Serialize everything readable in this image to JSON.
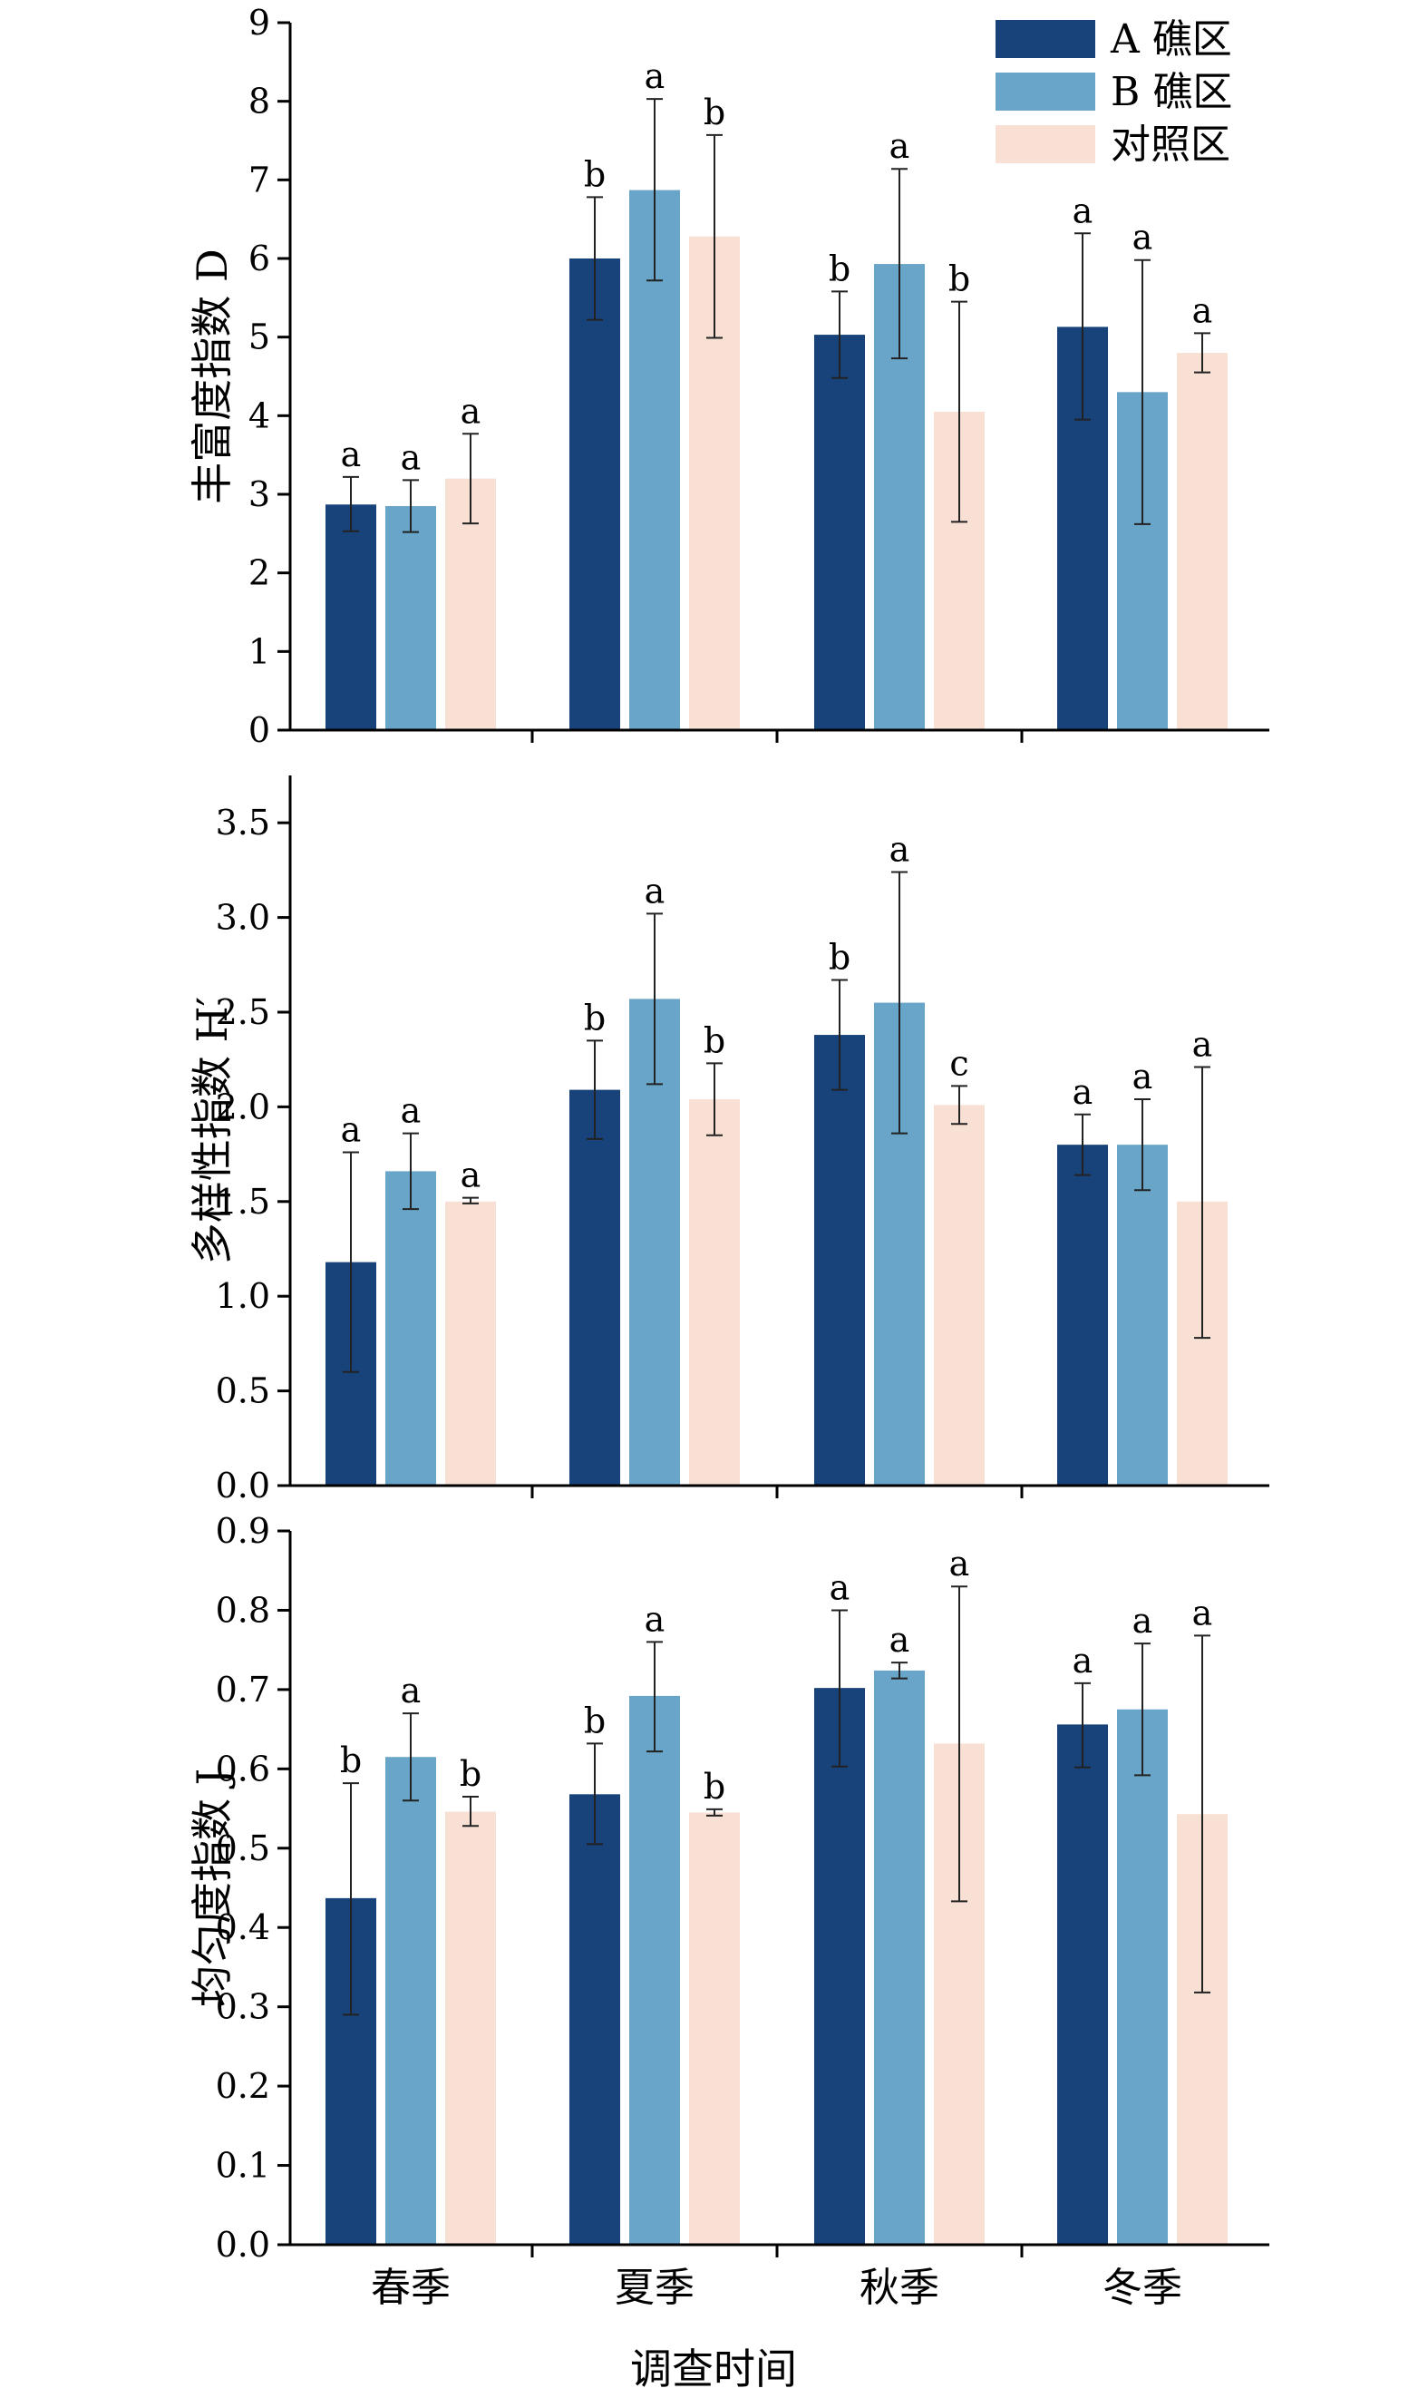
{
  "legend": {
    "items": [
      {
        "label": "A 礁区",
        "color": "#17437a"
      },
      {
        "label": "B 礁区",
        "color": "#68a5c8"
      },
      {
        "label": "对照区",
        "color": "#f8e0d5"
      }
    ]
  },
  "x_axis_title": "调查时间",
  "chart_data": [
    {
      "type": "bar",
      "ylabel": "丰富度指数 D",
      "categories": [
        "春季",
        "夏季",
        "秋季",
        "冬季"
      ],
      "ylim": [
        0,
        9
      ],
      "yticks": [
        0,
        1,
        2,
        3,
        4,
        5,
        6,
        7,
        8,
        9
      ],
      "ytick_labels": [
        "0",
        "1",
        "2",
        "3",
        "4",
        "5",
        "6",
        "7",
        "8",
        "9"
      ],
      "series": [
        {
          "name": "A 礁区",
          "values": [
            2.87,
            6.0,
            5.03,
            5.13
          ],
          "err_low": [
            2.53,
            5.22,
            4.48,
            3.95
          ],
          "err_high": [
            3.22,
            6.78,
            5.58,
            6.32
          ],
          "sig": [
            "a",
            "b",
            "b",
            "a"
          ]
        },
        {
          "name": "B 礁区",
          "values": [
            2.85,
            6.87,
            5.93,
            4.3
          ],
          "err_low": [
            2.52,
            5.72,
            4.73,
            2.62
          ],
          "err_high": [
            3.18,
            8.03,
            7.14,
            5.98
          ],
          "sig": [
            "a",
            "a",
            "a",
            "a"
          ]
        },
        {
          "name": "对照区",
          "values": [
            3.2,
            6.28,
            4.05,
            4.8
          ],
          "err_low": [
            2.63,
            4.99,
            2.65,
            4.55
          ],
          "err_high": [
            3.77,
            7.57,
            5.45,
            5.05
          ],
          "sig": [
            "a",
            "b",
            "b",
            "a"
          ]
        }
      ]
    },
    {
      "type": "bar",
      "ylabel": "多样性指数 H′",
      "categories": [
        "春季",
        "夏季",
        "秋季",
        "冬季"
      ],
      "ylim": [
        0,
        3.75
      ],
      "yticks": [
        0,
        0.5,
        1.0,
        1.5,
        2.0,
        2.5,
        3.0,
        3.5
      ],
      "ytick_labels": [
        "0.0",
        "0.5",
        "1.0",
        "1.5",
        "2.0",
        "2.5",
        "3.0",
        "3.5"
      ],
      "series": [
        {
          "name": "A 礁区",
          "values": [
            1.18,
            2.09,
            2.38,
            1.8
          ],
          "err_low": [
            0.6,
            1.83,
            2.09,
            1.64
          ],
          "err_high": [
            1.76,
            2.35,
            2.67,
            1.96
          ],
          "sig": [
            "a",
            "b",
            "b",
            "a"
          ]
        },
        {
          "name": "B 礁区",
          "values": [
            1.66,
            2.57,
            2.55,
            1.8
          ],
          "err_low": [
            1.46,
            2.12,
            1.86,
            1.56
          ],
          "err_high": [
            1.86,
            3.02,
            3.24,
            2.04
          ],
          "sig": [
            "a",
            "a",
            "a",
            "a"
          ]
        },
        {
          "name": "对照区",
          "values": [
            1.5,
            2.04,
            2.01,
            1.5
          ],
          "err_low": [
            1.49,
            1.85,
            1.91,
            0.78
          ],
          "err_high": [
            1.52,
            2.23,
            2.11,
            2.21
          ],
          "sig": [
            "a",
            "b",
            "c",
            "a"
          ]
        }
      ]
    },
    {
      "type": "bar",
      "ylabel": "均匀度指数 J",
      "categories": [
        "春季",
        "夏季",
        "秋季",
        "冬季"
      ],
      "ylim": [
        0,
        0.9
      ],
      "yticks": [
        0,
        0.1,
        0.2,
        0.3,
        0.4,
        0.5,
        0.6,
        0.7,
        0.8,
        0.9
      ],
      "ytick_labels": [
        "0.0",
        "0.1",
        "0.2",
        "0.3",
        "0.4",
        "0.5",
        "0.6",
        "0.7",
        "0.8",
        "0.9"
      ],
      "series": [
        {
          "name": "A 礁区",
          "values": [
            0.437,
            0.568,
            0.702,
            0.656
          ],
          "err_low": [
            0.29,
            0.505,
            0.603,
            0.602
          ],
          "err_high": [
            0.582,
            0.632,
            0.8,
            0.708
          ],
          "sig": [
            "b",
            "b",
            "a",
            "a"
          ]
        },
        {
          "name": "B 礁区",
          "values": [
            0.615,
            0.692,
            0.724,
            0.675
          ],
          "err_low": [
            0.56,
            0.622,
            0.714,
            0.592
          ],
          "err_high": [
            0.67,
            0.76,
            0.734,
            0.758
          ],
          "sig": [
            "a",
            "a",
            "a",
            "a"
          ]
        },
        {
          "name": "对照区",
          "values": [
            0.546,
            0.545,
            0.632,
            0.543
          ],
          "err_low": [
            0.528,
            0.541,
            0.433,
            0.318
          ],
          "err_high": [
            0.565,
            0.549,
            0.83,
            0.768
          ],
          "sig": [
            "b",
            "b",
            "a",
            "a"
          ]
        }
      ]
    }
  ]
}
